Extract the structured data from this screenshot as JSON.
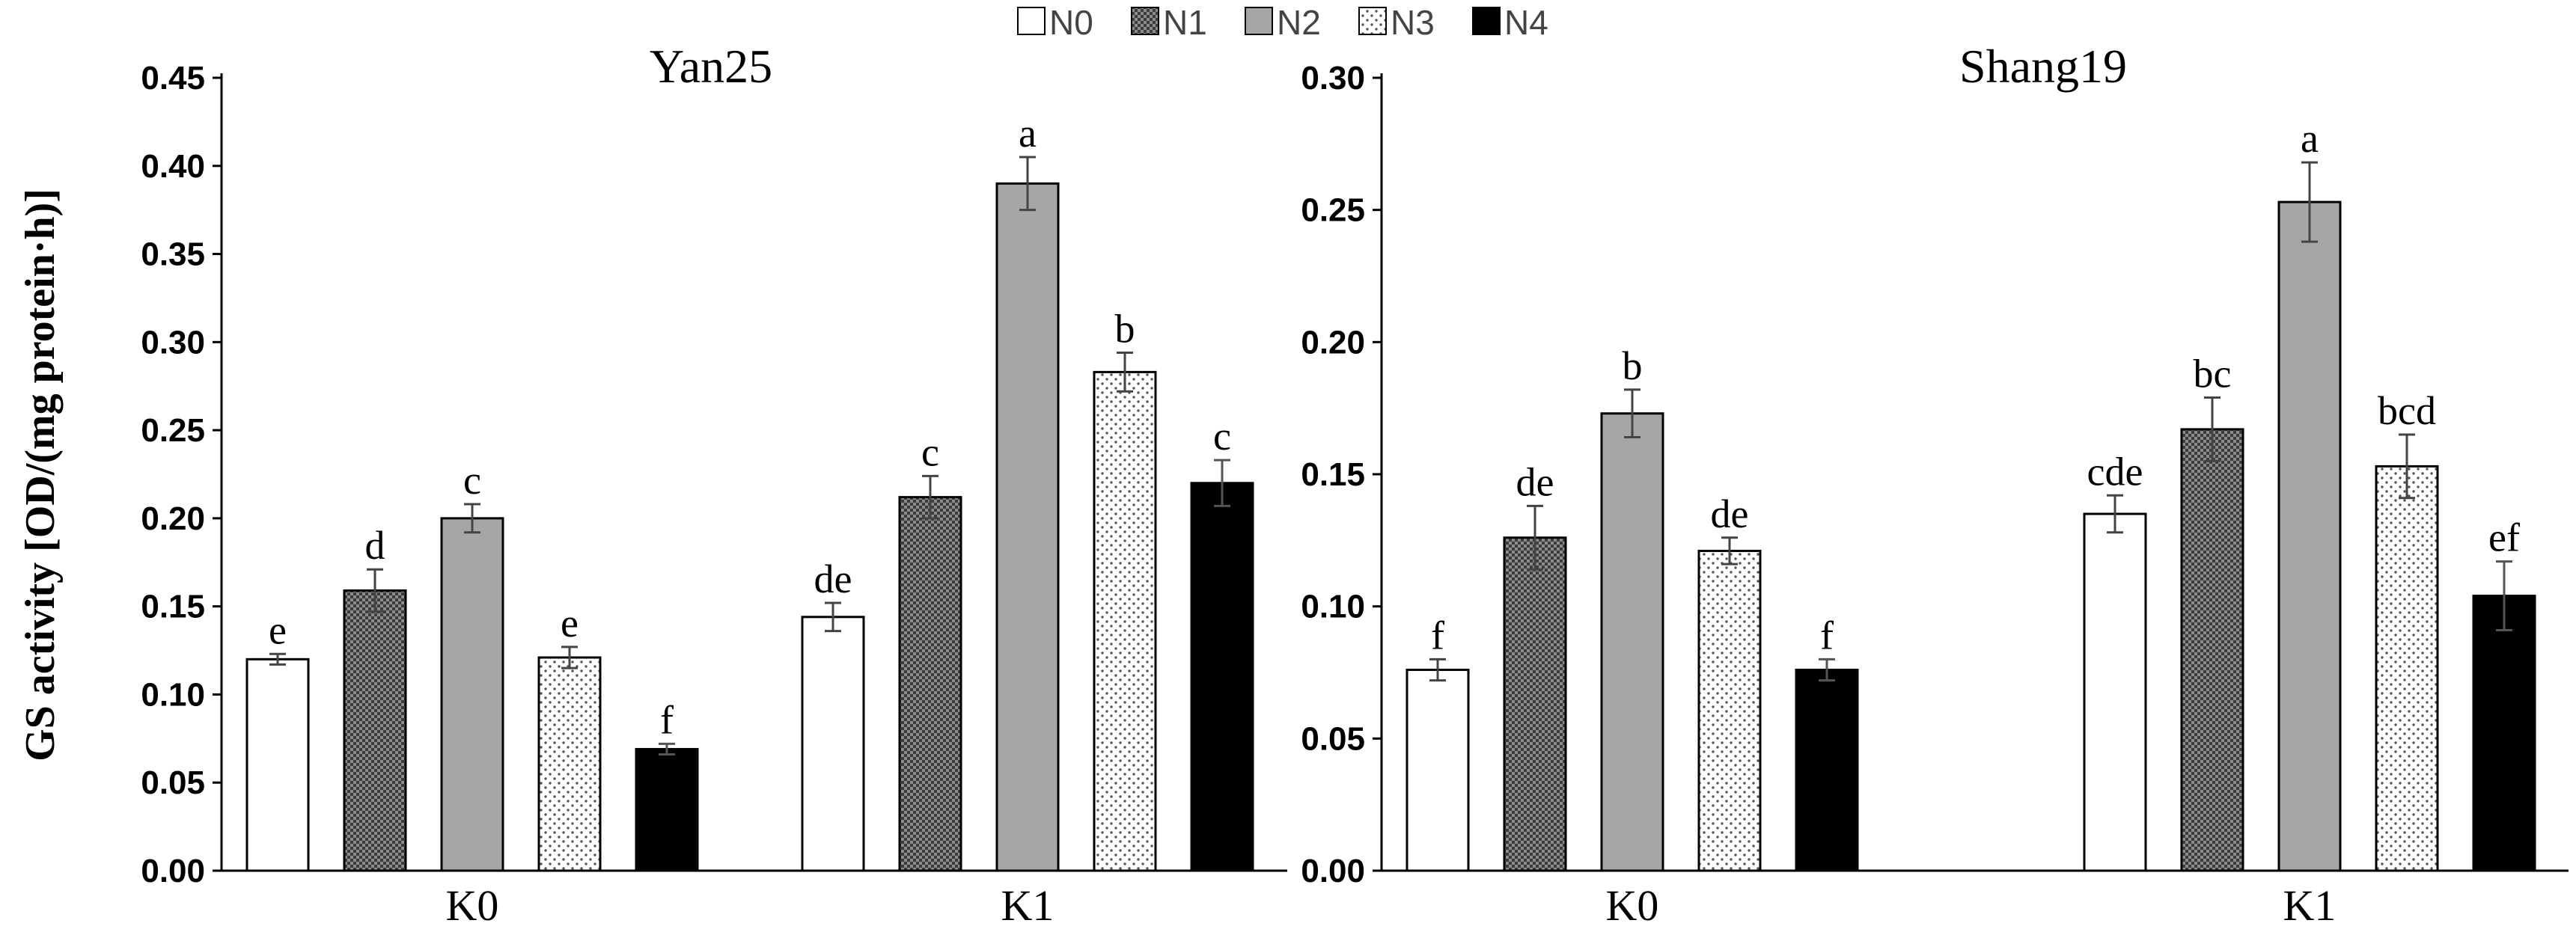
{
  "legend": [
    "N0",
    "N1",
    "N2",
    "N3",
    "N4"
  ],
  "y_axis_label": "GS activity [OD/(mg protein·h)]",
  "colors": {
    "N0": "#ffffff",
    "N1": "#6e6e6e",
    "N2": "#a6a6a6",
    "N3": "#ffffff",
    "N4": "#000000",
    "axis": "#000000"
  },
  "chart_data": [
    {
      "type": "bar",
      "title": "Yan25",
      "categories": [
        "K0",
        "K1"
      ],
      "ylim": [
        0,
        0.45
      ],
      "yticks": [
        "0.00",
        "0.05",
        "0.10",
        "0.15",
        "0.20",
        "0.25",
        "0.30",
        "0.35",
        "0.40",
        "0.45"
      ],
      "ylabel": "GS activity [OD/(mg protein·h)]",
      "series": [
        {
          "name": "N0",
          "values": [
            0.12,
            0.144
          ],
          "errors": [
            0.003,
            0.008
          ],
          "labels": [
            "e",
            "de"
          ]
        },
        {
          "name": "N1",
          "values": [
            0.159,
            0.212
          ],
          "errors": [
            0.012,
            0.012
          ],
          "labels": [
            "d",
            "c"
          ]
        },
        {
          "name": "N2",
          "values": [
            0.2,
            0.39
          ],
          "errors": [
            0.008,
            0.015
          ],
          "labels": [
            "c",
            "a"
          ]
        },
        {
          "name": "N3",
          "values": [
            0.121,
            0.283
          ],
          "errors": [
            0.006,
            0.011
          ],
          "labels": [
            "e",
            "b"
          ]
        },
        {
          "name": "N4",
          "values": [
            0.069,
            0.22
          ],
          "errors": [
            0.003,
            0.013
          ],
          "labels": [
            "f",
            "c"
          ]
        }
      ]
    },
    {
      "type": "bar",
      "title": "Shang19",
      "categories": [
        "K0",
        "K1"
      ],
      "ylim": [
        0,
        0.3
      ],
      "yticks": [
        "0.00",
        "0.05",
        "0.10",
        "0.15",
        "0.20",
        "0.25",
        "0.30"
      ],
      "series": [
        {
          "name": "N0",
          "values": [
            0.076,
            0.135
          ],
          "errors": [
            0.004,
            0.007
          ],
          "labels": [
            "f",
            "cde"
          ]
        },
        {
          "name": "N1",
          "values": [
            0.126,
            0.167
          ],
          "errors": [
            0.012,
            0.012
          ],
          "labels": [
            "de",
            "bc"
          ]
        },
        {
          "name": "N2",
          "values": [
            0.173,
            0.253
          ],
          "errors": [
            0.009,
            0.015
          ],
          "labels": [
            "b",
            "a"
          ]
        },
        {
          "name": "N3",
          "values": [
            0.121,
            0.153
          ],
          "errors": [
            0.005,
            0.012
          ],
          "labels": [
            "de",
            "bcd"
          ]
        },
        {
          "name": "N4",
          "values": [
            0.076,
            0.104
          ],
          "errors": [
            0.004,
            0.013
          ],
          "labels": [
            "f",
            "ef"
          ]
        }
      ]
    }
  ]
}
